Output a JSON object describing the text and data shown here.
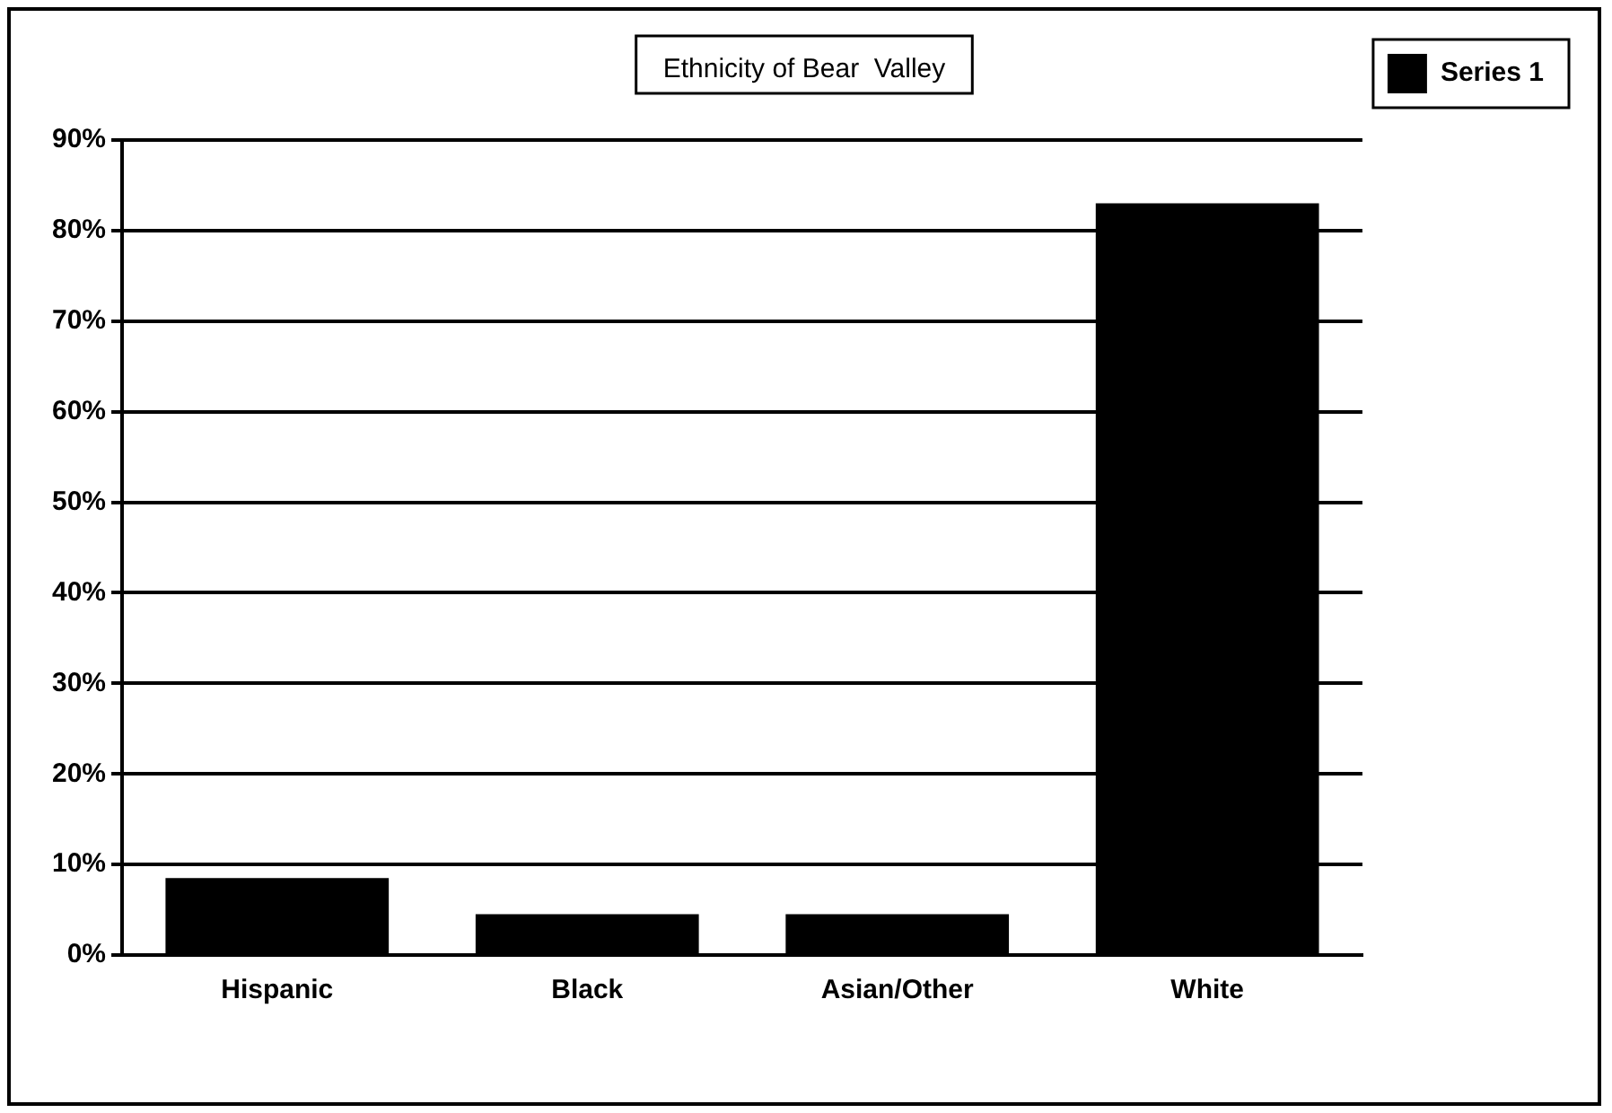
{
  "chart_data": {
    "type": "bar",
    "title": "Ethnicity of Bear  Valley",
    "categories": [
      "Hispanic",
      "Black",
      "Asian/Other",
      "White"
    ],
    "series": [
      {
        "name": "Series 1",
        "color": "#000000",
        "values": [
          8.5,
          4.5,
          4.5,
          83
        ]
      }
    ],
    "ylim": [
      0,
      90
    ],
    "yticks": [
      {
        "value": 0,
        "label": "0%"
      },
      {
        "value": 10,
        "label": "10%"
      },
      {
        "value": 20,
        "label": "20%"
      },
      {
        "value": 30,
        "label": "30%"
      },
      {
        "value": 40,
        "label": "40%"
      },
      {
        "value": 50,
        "label": "50%"
      },
      {
        "value": 60,
        "label": "60%"
      },
      {
        "value": 70,
        "label": "70%"
      },
      {
        "value": 80,
        "label": "80%"
      },
      {
        "value": 90,
        "label": "90%"
      }
    ],
    "grid": "y",
    "legend": "top right"
  }
}
